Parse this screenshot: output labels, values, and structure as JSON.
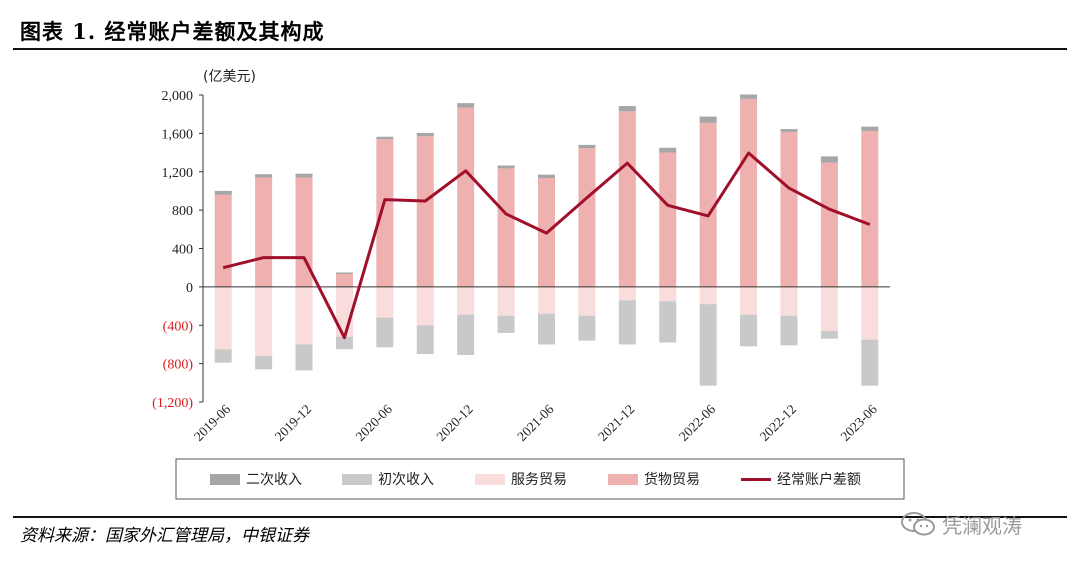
{
  "header": {
    "title": "图表 1. 经常账户差额及其构成"
  },
  "footer": {
    "source": "资料来源：国家外汇管理局，中银证券",
    "watermark": "凭澜观涛"
  },
  "colors": {
    "secondary_income": "#a6a6a6",
    "primary_income": "#c9c9c9",
    "services_trade": "#f9dcdc",
    "goods_trade": "#eeb1b0",
    "current_account": "#a0102a",
    "negative_tick": "#d42020"
  },
  "chart_data": {
    "type": "bar",
    "stacked": true,
    "unit_label": "(亿美元)",
    "ylim": [
      -1200,
      2000
    ],
    "yticks": [
      2000,
      1600,
      1200,
      800,
      400,
      0,
      -400,
      -800,
      -1200
    ],
    "ytick_labels": [
      "2,000",
      "1,600",
      "1,200",
      "800",
      "400",
      "0",
      "(400)",
      "(800)",
      "(1,200)"
    ],
    "categories": [
      "2019-06",
      "2019-09",
      "2019-12",
      "2020-03",
      "2020-06",
      "2020-09",
      "2020-12",
      "2021-03",
      "2021-06",
      "2021-09",
      "2021-12",
      "2022-03",
      "2022-06",
      "2022-09",
      "2022-12",
      "2023-03",
      "2023-06"
    ],
    "xtick_labels": [
      "2019-06",
      "2019-12",
      "2020-06",
      "2020-12",
      "2021-06",
      "2021-12",
      "2022-06",
      "2022-12",
      "2023-06"
    ],
    "legend_position": "bottom",
    "series": [
      {
        "name": "二次收入",
        "kind": "bar",
        "color_key": "secondary_income",
        "values": [
          40,
          35,
          40,
          15,
          25,
          35,
          45,
          30,
          35,
          35,
          55,
          50,
          65,
          45,
          30,
          65,
          45
        ]
      },
      {
        "name": "初次收入",
        "kind": "bar",
        "color_key": "primary_income",
        "values": [
          -140,
          -140,
          -270,
          -130,
          -310,
          -300,
          -420,
          -180,
          -320,
          -260,
          -460,
          -430,
          -850,
          -330,
          -310,
          -80,
          -480
        ]
      },
      {
        "name": "服务贸易",
        "kind": "bar",
        "color_key": "services_trade",
        "values": [
          -650,
          -720,
          -600,
          -520,
          -320,
          -400,
          -290,
          -300,
          -280,
          -300,
          -140,
          -150,
          -180,
          -290,
          -300,
          -460,
          -550
        ]
      },
      {
        "name": "货物贸易",
        "kind": "bar",
        "color_key": "goods_trade",
        "values": [
          960,
          1140,
          1140,
          135,
          1540,
          1570,
          1870,
          1235,
          1135,
          1445,
          1830,
          1400,
          1710,
          1960,
          1615,
          1295,
          1625
        ]
      },
      {
        "name": "经常账户差额",
        "kind": "line",
        "color_key": "current_account",
        "values": [
          200,
          305,
          305,
          -530,
          910,
          895,
          1210,
          760,
          560,
          930,
          1290,
          850,
          740,
          1395,
          1030,
          810,
          650
        ]
      }
    ]
  }
}
